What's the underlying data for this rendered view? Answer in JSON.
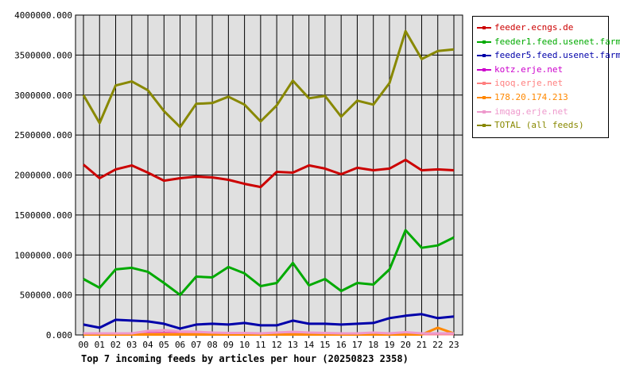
{
  "chart_data": {
    "type": "line",
    "title": "Top 7 incoming feeds by articles per hour (20250823 2358)",
    "x": [
      "00",
      "01",
      "02",
      "03",
      "04",
      "05",
      "06",
      "07",
      "08",
      "09",
      "10",
      "11",
      "12",
      "13",
      "14",
      "15",
      "16",
      "17",
      "18",
      "19",
      "20",
      "21",
      "22",
      "23"
    ],
    "yticks": [
      "0.000",
      "500000.000",
      "1000000.000",
      "1500000.000",
      "2000000.000",
      "2500000.000",
      "3000000.000",
      "3500000.000",
      "4000000.000"
    ],
    "ylim": [
      0,
      4000000
    ],
    "grid": true,
    "legend_position": "top-right",
    "series": [
      {
        "name": "feeder.ecngs.de",
        "color": "#cc0000",
        "values": [
          2130000,
          1960000,
          2070000,
          2120000,
          2030000,
          1930000,
          1960000,
          1980000,
          1970000,
          1940000,
          1890000,
          1850000,
          2040000,
          2030000,
          2120000,
          2080000,
          2010000,
          2090000,
          2060000,
          2080000,
          2190000,
          2060000,
          2070000,
          2060000
        ]
      },
      {
        "name": "feeder1.feed.usenet.farm",
        "color": "#00aa00",
        "values": [
          700000,
          590000,
          820000,
          840000,
          790000,
          650000,
          500000,
          730000,
          720000,
          850000,
          770000,
          610000,
          650000,
          900000,
          620000,
          700000,
          550000,
          650000,
          630000,
          820000,
          1310000,
          1090000,
          1120000,
          1220000
        ]
      },
      {
        "name": "feeder5.feed.usenet.farm",
        "color": "#0000aa",
        "values": [
          130000,
          90000,
          190000,
          180000,
          170000,
          140000,
          80000,
          130000,
          140000,
          130000,
          150000,
          120000,
          120000,
          180000,
          140000,
          140000,
          130000,
          140000,
          150000,
          210000,
          240000,
          260000,
          210000,
          230000
        ]
      },
      {
        "name": "kotz.erje.net",
        "color": "#cc00cc",
        "values": [
          15000,
          15000,
          15000,
          15000,
          20000,
          25000,
          20000,
          20000,
          18000,
          15000,
          15000,
          15000,
          15000,
          15000,
          15000,
          15000,
          15000,
          15000,
          15000,
          15000,
          20000,
          15000,
          15000,
          15000
        ]
      },
      {
        "name": "iqoq.erje.net",
        "color": "#ff8080",
        "values": [
          10000,
          10000,
          10000,
          10000,
          15000,
          20000,
          15000,
          15000,
          12000,
          10000,
          10000,
          10000,
          10000,
          10000,
          10000,
          10000,
          10000,
          10000,
          10000,
          10000,
          15000,
          10000,
          10000,
          10000
        ]
      },
      {
        "name": "178.20.174.213",
        "color": "#ff8800",
        "values": [
          5000,
          5000,
          5000,
          5000,
          5000,
          5000,
          5000,
          5000,
          5000,
          5000,
          5000,
          5000,
          5000,
          5000,
          5000,
          5000,
          5000,
          5000,
          5000,
          5000,
          5000,
          5000,
          90000,
          20000
        ]
      },
      {
        "name": "imqag.erje.net",
        "color": "#ee99cc",
        "values": [
          20000,
          20000,
          20000,
          20000,
          50000,
          60000,
          45000,
          40000,
          30000,
          25000,
          25000,
          20000,
          30000,
          40000,
          30000,
          25000,
          20000,
          20000,
          30000,
          20000,
          35000,
          20000,
          20000,
          20000
        ]
      },
      {
        "name": "TOTAL (all feeds)",
        "color": "#888800",
        "values": [
          3000000,
          2650000,
          3120000,
          3170000,
          3060000,
          2800000,
          2600000,
          2890000,
          2900000,
          2980000,
          2880000,
          2670000,
          2870000,
          3180000,
          2960000,
          2990000,
          2730000,
          2930000,
          2880000,
          3150000,
          3800000,
          3450000,
          3550000,
          3570000
        ]
      }
    ]
  }
}
